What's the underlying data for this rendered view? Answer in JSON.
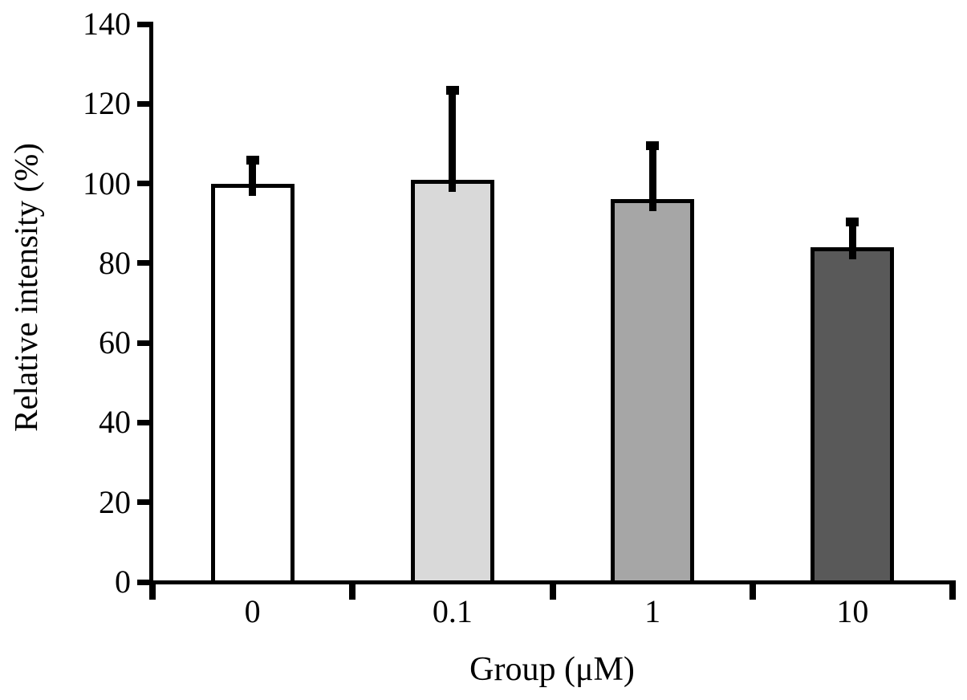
{
  "chart_data": {
    "type": "bar",
    "title": "",
    "xlabel": "Group (μM)",
    "ylabel": "Relative intensity (%)",
    "categories": [
      "0",
      "0.1",
      "1",
      "10"
    ],
    "values": [
      100,
      101,
      96,
      84
    ],
    "errors_upper": [
      7,
      23.5,
      14.5,
      7.5
    ],
    "bar_fill_colors": [
      "#ffffff",
      "#d9d9d9",
      "#a6a6a6",
      "#595959"
    ],
    "bar_border_color": "#000000",
    "axis_color": "#000000",
    "text_color": "#000000",
    "ylim": [
      0,
      140
    ],
    "yticks": [
      0,
      20,
      40,
      60,
      80,
      100,
      120,
      140
    ],
    "grid": false,
    "legend": null,
    "error_bar_direction": "upper-only"
  }
}
